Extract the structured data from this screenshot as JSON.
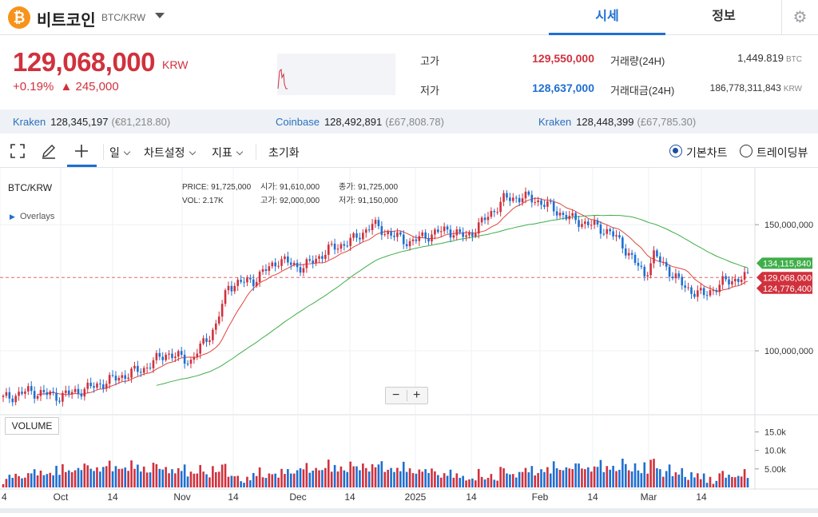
{
  "header": {
    "logo_glyph": "₿",
    "coin_name": "비트코인",
    "pair": "BTC/KRW",
    "tabs": [
      {
        "label": "시세",
        "active": true
      },
      {
        "label": "정보",
        "active": false
      }
    ],
    "settings_icon": "gear-icon"
  },
  "price": {
    "current": "129,068,000",
    "unit": "KRW",
    "change_pct": "+0.19%",
    "change_abs": "▲ 245,000",
    "color_up": "#d0313d",
    "color_down": "#1e6fd1"
  },
  "stats": {
    "high_label": "고가",
    "high_value": "129,550,000",
    "low_label": "저가",
    "low_value": "128,637,000",
    "vol_label": "거래량(24H)",
    "vol_value": "1,449.819",
    "vol_unit": "BTC",
    "amount_label": "거래대금(24H)",
    "amount_value": "186,778,311,843",
    "amount_unit": "KRW"
  },
  "exchanges": [
    {
      "name": "Kraken",
      "price": "128,345,197",
      "sub": "(€81,218.80)"
    },
    {
      "name": "Coinbase",
      "price": "128,492,891",
      "sub": "(£67,808.78)"
    },
    {
      "name": "Kraken",
      "price": "128,448,399",
      "sub": "(£67,785.30)"
    }
  ],
  "toolbar": {
    "icons": [
      "fullscreen-icon",
      "pencil-icon",
      "crosshair-icon"
    ],
    "period": "일",
    "chart_settings": "차트설정",
    "indicators": "지표",
    "reset": "초기화",
    "radio_basic": "기본차트",
    "radio_tradingview": "트레이딩뷰"
  },
  "chart_overlay": {
    "symbol": "BTC/KRW",
    "overlays": "Overlays",
    "info": [
      {
        "k": "PRICE:",
        "v": "91,725,000"
      },
      {
        "k": "시가:",
        "v": "91,610,000"
      },
      {
        "k": "종가:",
        "v": "91,725,000"
      },
      {
        "k": "VOL:",
        "v": "2.17K"
      },
      {
        "k": "고가:",
        "v": "92,000,000"
      },
      {
        "k": "저가:",
        "v": "91,150,000"
      }
    ],
    "volume_label": "VOLUME",
    "zoom_out": "−",
    "zoom_in": "+"
  },
  "chart_data": {
    "type": "candlestick",
    "ylim": [
      75000000,
      170000000
    ],
    "yticks": [
      "150,000,000",
      "100,000,000"
    ],
    "ytick_values": [
      150000000,
      100000000
    ],
    "xticks": [
      "4",
      "Oct",
      "14",
      "Nov",
      "14",
      "Dec",
      "14",
      "2025",
      "14",
      "Feb",
      "14",
      "Mar",
      "14"
    ],
    "price_tags": [
      {
        "label": "134,115,840",
        "value": 134115840,
        "color": "#3fae49"
      },
      {
        "label": "129,068,000",
        "value": 129068000,
        "color": "#d0313d"
      },
      {
        "label": "124,776,400",
        "value": 124776400,
        "color": "#d0313d"
      }
    ],
    "current_price": 129068000,
    "close_anchors": [
      [
        0,
        81000000
      ],
      [
        8,
        84000000
      ],
      [
        18,
        82000000
      ],
      [
        28,
        85500000
      ],
      [
        38,
        90000000
      ],
      [
        45,
        93000000
      ],
      [
        52,
        99000000
      ],
      [
        60,
        96000000
      ],
      [
        68,
        110000000
      ],
      [
        72,
        126000000
      ],
      [
        80,
        128000000
      ],
      [
        88,
        136000000
      ],
      [
        96,
        133000000
      ],
      [
        104,
        140000000
      ],
      [
        112,
        144000000
      ],
      [
        118,
        150000000
      ],
      [
        124,
        146000000
      ],
      [
        130,
        143000000
      ],
      [
        136,
        146000000
      ],
      [
        142,
        148000000
      ],
      [
        148,
        145000000
      ],
      [
        154,
        152000000
      ],
      [
        160,
        160000000
      ],
      [
        166,
        161000000
      ],
      [
        172,
        159000000
      ],
      [
        176,
        156000000
      ],
      [
        182,
        152000000
      ],
      [
        188,
        150000000
      ],
      [
        194,
        147000000
      ],
      [
        198,
        142000000
      ],
      [
        202,
        135000000
      ],
      [
        205,
        130000000
      ],
      [
        208,
        138000000
      ],
      [
        212,
        133000000
      ],
      [
        218,
        125000000
      ],
      [
        224,
        122000000
      ],
      [
        230,
        127000000
      ],
      [
        236,
        129000000
      ],
      [
        238,
        129068000
      ]
    ],
    "ma_short_color": "#e0453c",
    "ma_long_color": "#3fae49",
    "volume_yticks": [
      "15.0k",
      "10.0k",
      "5.00k"
    ],
    "volume_ytick_values": [
      15000,
      10000,
      5000
    ],
    "volume_ylim": [
      0,
      19000
    ]
  }
}
